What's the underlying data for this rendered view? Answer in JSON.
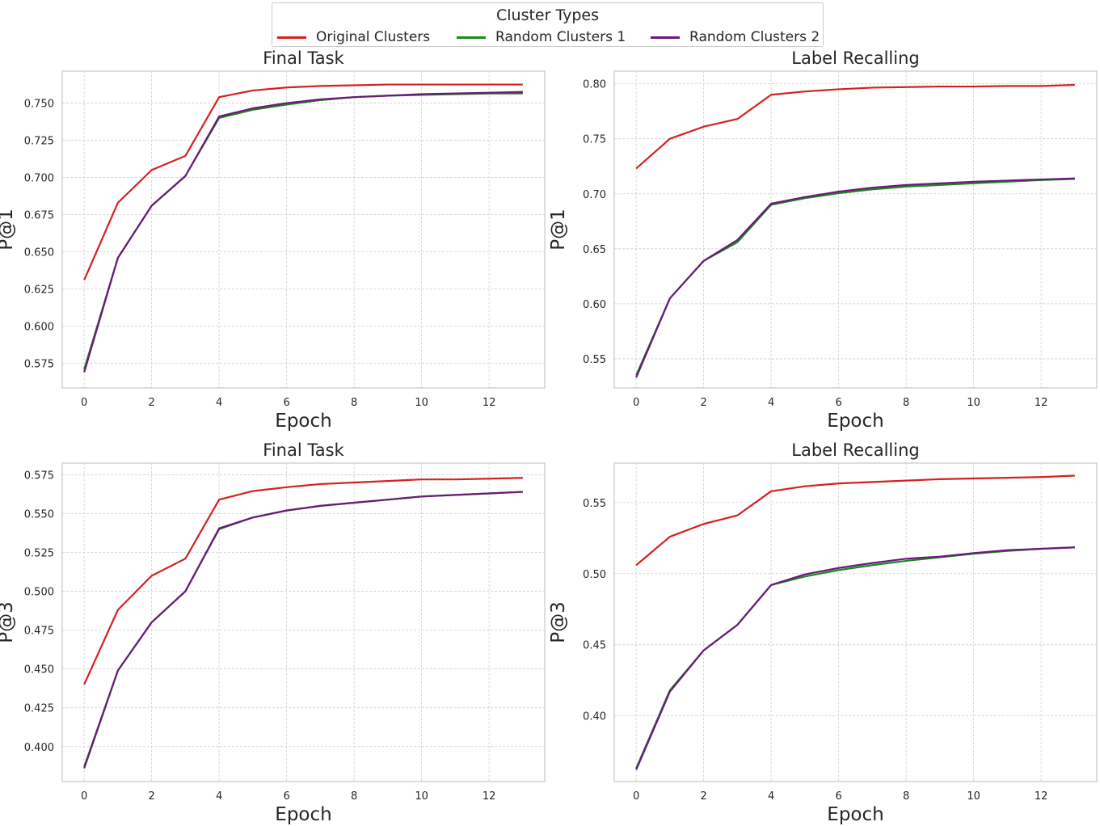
{
  "legend": {
    "title": "Cluster Types",
    "entries": [
      {
        "label": "Original Clusters",
        "color": "#d62020"
      },
      {
        "label": "Random Clusters 1",
        "color": "#1a8a1a"
      },
      {
        "label": "Random Clusters 2",
        "color": "#6a1a7a"
      }
    ]
  },
  "chart_data": [
    {
      "type": "line",
      "title": "Final Task",
      "xlabel": "Epoch",
      "ylabel": "P@1",
      "x": [
        0,
        1,
        2,
        3,
        4,
        5,
        6,
        7,
        8,
        9,
        10,
        11,
        12,
        13
      ],
      "xticks": [
        0,
        2,
        4,
        6,
        8,
        10,
        12
      ],
      "xlim": [
        -0.65,
        13.65
      ],
      "yticks": [
        0.575,
        0.6,
        0.625,
        0.65,
        0.675,
        0.7,
        0.725,
        0.75
      ],
      "ytick_labels": [
        "0.575",
        "0.600",
        "0.625",
        "0.650",
        "0.675",
        "0.700",
        "0.725",
        "0.750"
      ],
      "ylim": [
        0.5585,
        0.7715
      ],
      "grid": true,
      "series": [
        {
          "name": "Original Clusters",
          "color": "#d62020",
          "values": [
            0.631,
            0.683,
            0.705,
            0.7145,
            0.754,
            0.7585,
            0.7605,
            0.7615,
            0.762,
            0.7625,
            0.7625,
            0.7625,
            0.7625,
            0.7625
          ]
        },
        {
          "name": "Random Clusters 1",
          "color": "#1a8a1a",
          "values": [
            0.571,
            0.646,
            0.681,
            0.701,
            0.74,
            0.7455,
            0.749,
            0.752,
            0.754,
            0.755,
            0.7555,
            0.756,
            0.7565,
            0.7565
          ]
        },
        {
          "name": "Random Clusters 2",
          "color": "#6a1a7a",
          "values": [
            0.569,
            0.646,
            0.681,
            0.701,
            0.741,
            0.7465,
            0.75,
            0.7525,
            0.754,
            0.755,
            0.756,
            0.7565,
            0.757,
            0.7575
          ]
        }
      ]
    },
    {
      "type": "line",
      "title": "Label Recalling",
      "xlabel": "Epoch",
      "ylabel": "P@1",
      "x": [
        0,
        1,
        2,
        3,
        4,
        5,
        6,
        7,
        8,
        9,
        10,
        11,
        12,
        13
      ],
      "xticks": [
        0,
        2,
        4,
        6,
        8,
        10,
        12
      ],
      "xlim": [
        -0.65,
        13.65
      ],
      "yticks": [
        0.55,
        0.6,
        0.65,
        0.7,
        0.75,
        0.8
      ],
      "ytick_labels": [
        "0.55",
        "0.60",
        "0.65",
        "0.70",
        "0.75",
        "0.80"
      ],
      "ylim": [
        0.5235,
        0.8115
      ],
      "grid": true,
      "series": [
        {
          "name": "Original Clusters",
          "color": "#d62020",
          "values": [
            0.723,
            0.75,
            0.761,
            0.768,
            0.79,
            0.793,
            0.795,
            0.7965,
            0.797,
            0.7975,
            0.7975,
            0.798,
            0.798,
            0.799
          ]
        },
        {
          "name": "Random Clusters 1",
          "color": "#1a8a1a",
          "values": [
            0.535,
            0.605,
            0.639,
            0.656,
            0.69,
            0.696,
            0.7005,
            0.704,
            0.7065,
            0.708,
            0.7095,
            0.711,
            0.7125,
            0.7135
          ]
        },
        {
          "name": "Random Clusters 2",
          "color": "#6a1a7a",
          "values": [
            0.533,
            0.605,
            0.639,
            0.658,
            0.691,
            0.697,
            0.702,
            0.7055,
            0.708,
            0.7095,
            0.711,
            0.712,
            0.713,
            0.714
          ]
        }
      ]
    },
    {
      "type": "line",
      "title": "Final Task",
      "xlabel": "Epoch",
      "ylabel": "P@3",
      "x": [
        0,
        1,
        2,
        3,
        4,
        5,
        6,
        7,
        8,
        9,
        10,
        11,
        12,
        13
      ],
      "xticks": [
        0,
        2,
        4,
        6,
        8,
        10,
        12
      ],
      "xlim": [
        -0.65,
        13.65
      ],
      "yticks": [
        0.4,
        0.425,
        0.45,
        0.475,
        0.5,
        0.525,
        0.55,
        0.575
      ],
      "ytick_labels": [
        "0.400",
        "0.425",
        "0.450",
        "0.475",
        "0.500",
        "0.525",
        "0.550",
        "0.575"
      ],
      "ylim": [
        0.3775,
        0.5825
      ],
      "grid": true,
      "series": [
        {
          "name": "Original Clusters",
          "color": "#d62020",
          "values": [
            0.44,
            0.488,
            0.51,
            0.521,
            0.559,
            0.5645,
            0.567,
            0.569,
            0.57,
            0.571,
            0.572,
            0.572,
            0.5725,
            0.573
          ]
        },
        {
          "name": "Random Clusters 1",
          "color": "#1a8a1a",
          "values": [
            0.387,
            0.449,
            0.48,
            0.5,
            0.54,
            0.5475,
            0.552,
            0.555,
            0.557,
            0.559,
            0.561,
            0.562,
            0.563,
            0.564
          ]
        },
        {
          "name": "Random Clusters 2",
          "color": "#6a1a7a",
          "values": [
            0.386,
            0.449,
            0.48,
            0.5,
            0.5405,
            0.5475,
            0.552,
            0.555,
            0.557,
            0.559,
            0.561,
            0.562,
            0.563,
            0.564
          ]
        }
      ]
    },
    {
      "type": "line",
      "title": "Label Recalling",
      "xlabel": "Epoch",
      "ylabel": "P@3",
      "x": [
        0,
        1,
        2,
        3,
        4,
        5,
        6,
        7,
        8,
        9,
        10,
        11,
        12,
        13
      ],
      "xticks": [
        0,
        2,
        4,
        6,
        8,
        10,
        12
      ],
      "xlim": [
        -0.65,
        13.65
      ],
      "yticks": [
        0.4,
        0.45,
        0.5,
        0.55
      ],
      "ytick_labels": [
        "0.40",
        "0.45",
        "0.50",
        "0.55"
      ],
      "ylim": [
        0.3537,
        0.5778
      ],
      "grid": true,
      "series": [
        {
          "name": "Original Clusters",
          "color": "#d62020",
          "values": [
            0.506,
            0.526,
            0.535,
            0.541,
            0.558,
            0.5615,
            0.5635,
            0.5645,
            0.5655,
            0.5665,
            0.567,
            0.5675,
            0.568,
            0.569
          ]
        },
        {
          "name": "Random Clusters 1",
          "color": "#1a8a1a",
          "values": [
            0.363,
            0.418,
            0.446,
            0.464,
            0.492,
            0.498,
            0.5025,
            0.506,
            0.509,
            0.5115,
            0.514,
            0.516,
            0.5175,
            0.5185
          ]
        },
        {
          "name": "Random Clusters 2",
          "color": "#6a1a7a",
          "values": [
            0.362,
            0.417,
            0.446,
            0.464,
            0.492,
            0.4995,
            0.504,
            0.5075,
            0.5105,
            0.512,
            0.5145,
            0.5165,
            0.5175,
            0.5185
          ]
        }
      ]
    }
  ]
}
